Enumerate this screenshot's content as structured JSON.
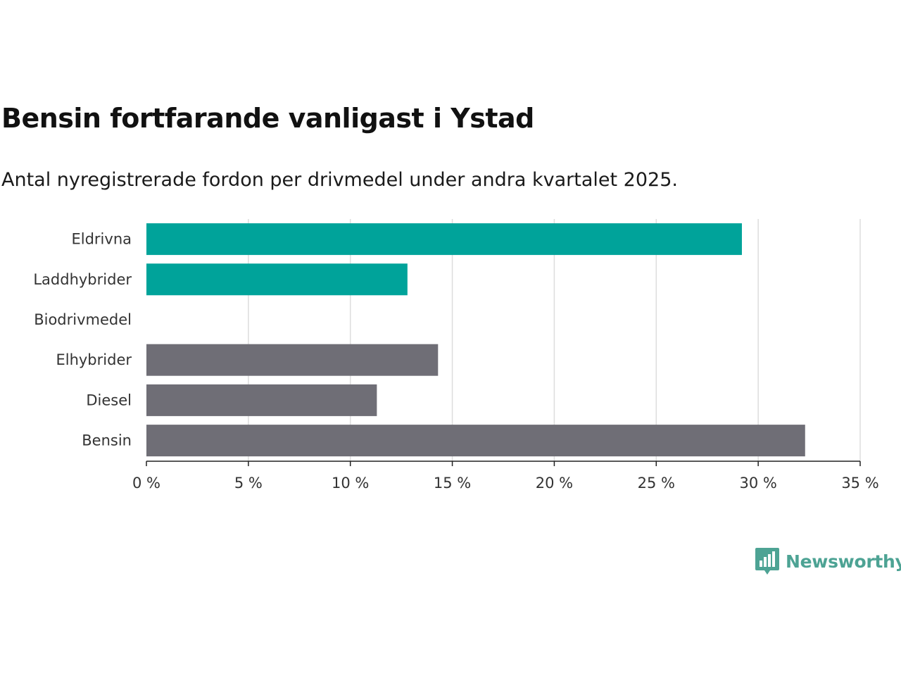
{
  "title": "Bensin fortfarande vanligast i Ystad",
  "subtitle": "Antal nyregistrerade fordon per drivmedel under andra kvartalet 2025.",
  "logo": {
    "text": "Newsworthy",
    "icon": "bar-chart-speech-bubble-icon",
    "color": "#4da394"
  },
  "colors": {
    "highlight": "#00a39a",
    "default": "#6f6e76",
    "grid": "#dddddd",
    "axis": "#222222"
  },
  "chart_data": {
    "type": "bar",
    "orientation": "horizontal",
    "categories": [
      "Eldrivna",
      "Laddhybrider",
      "Biodrivmedel",
      "Elhybrider",
      "Diesel",
      "Bensin"
    ],
    "values": [
      29.2,
      12.8,
      0,
      14.3,
      11.3,
      32.3
    ],
    "bar_colors": [
      "#00a39a",
      "#00a39a",
      "#00a39a",
      "#6f6e76",
      "#6f6e76",
      "#6f6e76"
    ],
    "title": "Bensin fortfarande vanligast i Ystad",
    "subtitle": "Antal nyregistrerade fordon per drivmedel under andra kvartalet 2025.",
    "xlabel": "",
    "ylabel": "",
    "xlim": [
      0,
      35
    ],
    "xticks": [
      0,
      5,
      10,
      15,
      20,
      25,
      30,
      35
    ],
    "xtick_labels": [
      "0 %",
      "5 %",
      "10 %",
      "15 %",
      "20 %",
      "25 %",
      "30 %",
      "35 %"
    ],
    "grid": "vertical",
    "legend": "none"
  }
}
